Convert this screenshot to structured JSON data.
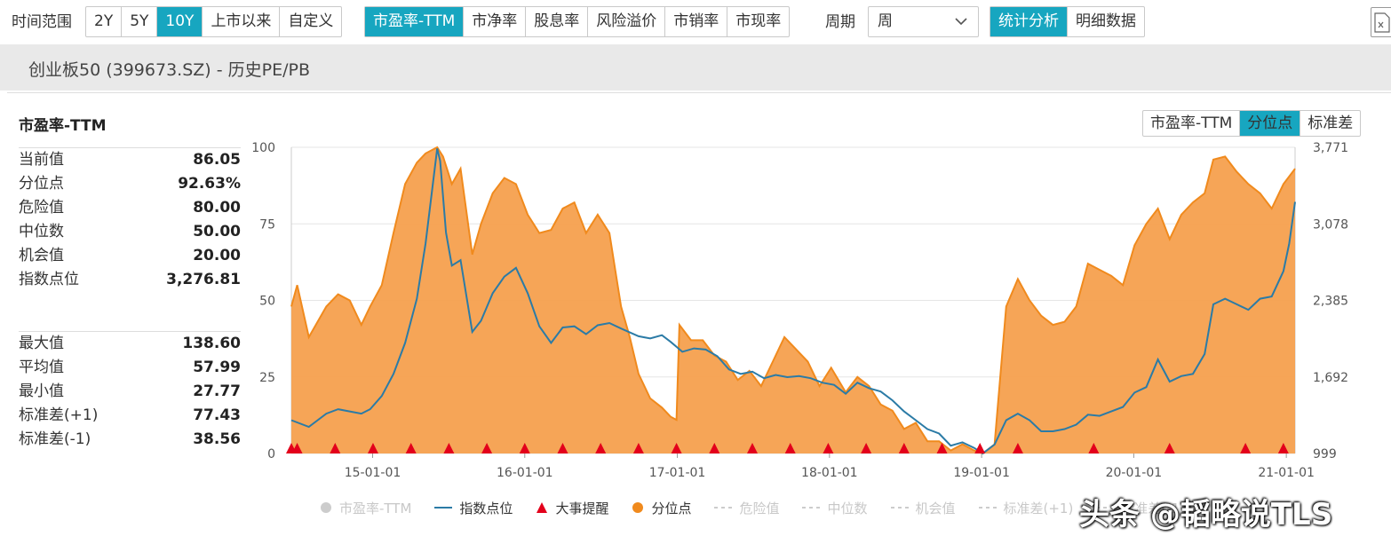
{
  "toolbar": {
    "time_range_label": "时间范围",
    "range_buttons": [
      "2Y",
      "5Y",
      "10Y",
      "上市以来",
      "自定义"
    ],
    "active_range": "10Y",
    "metric_buttons": [
      "市盈率-TTM",
      "市净率",
      "股息率",
      "风险溢价",
      "市销率",
      "市现率"
    ],
    "active_metric": "市盈率-TTM",
    "period_label": "周期",
    "period_value": "周",
    "view_buttons": [
      "统计分析",
      "明细数据"
    ],
    "active_view": "统计分析"
  },
  "subtitle": "创业板50 (399673.SZ) - 历史PE/PB",
  "panel": {
    "title": "市盈率-TTM",
    "stats_primary": [
      {
        "k": "当前值",
        "v": "86.05"
      },
      {
        "k": "分位点",
        "v": "92.63%"
      },
      {
        "k": "危险值",
        "v": "80.00"
      },
      {
        "k": "中位数",
        "v": "50.00"
      },
      {
        "k": "机会值",
        "v": "20.00"
      },
      {
        "k": "指数点位",
        "v": "3,276.81"
      }
    ],
    "stats_secondary": [
      {
        "k": "最大值",
        "v": "138.60"
      },
      {
        "k": "平均值",
        "v": "57.99"
      },
      {
        "k": "最小值",
        "v": "27.77"
      },
      {
        "k": "标准差(+1)",
        "v": "77.43"
      },
      {
        "k": "标准差(-1)",
        "v": "38.56"
      }
    ]
  },
  "mode_buttons": [
    "市盈率-TTM",
    "分位点",
    "标准差"
  ],
  "active_mode": "分位点",
  "colors": {
    "accent": "#17a6c0",
    "percentile_fill": "#f5a04e",
    "percentile_line": "#f08a1d",
    "index_line": "#2b7ba6",
    "event_marker": "#e3001b",
    "grid": "#e6e6e6"
  },
  "legend": [
    {
      "label": "市盈率-TTM",
      "icon": "circle-icon",
      "muted": true
    },
    {
      "label": "指数点位",
      "icon": "line-icon",
      "muted": false
    },
    {
      "label": "大事提醒",
      "icon": "triangle-icon",
      "muted": false
    },
    {
      "label": "分位点",
      "icon": "circle-icon",
      "muted": false
    },
    {
      "label": "危险值",
      "icon": "dash-icon",
      "muted": true
    },
    {
      "label": "中位数",
      "icon": "dash-icon",
      "muted": true
    },
    {
      "label": "机会值",
      "icon": "dash-icon",
      "muted": true
    },
    {
      "label": "标准差(+1)",
      "icon": "dash-icon",
      "muted": true
    },
    {
      "label": "标准差(-1)",
      "icon": "dash-icon",
      "muted": true
    }
  ],
  "watermark": "头条 @韬略说TLS",
  "chart_data": {
    "type": "area",
    "x_domain": [
      "2014-06-20",
      "2021-01-22"
    ],
    "x_ticks": [
      {
        "date": "2015-01-01",
        "label": "15-01-01"
      },
      {
        "date": "2016-01-01",
        "label": "16-01-01"
      },
      {
        "date": "2017-01-01",
        "label": "17-01-01"
      },
      {
        "date": "2018-01-01",
        "label": "18-01-01"
      },
      {
        "date": "2019-01-01",
        "label": "19-01-01"
      },
      {
        "date": "2020-01-01",
        "label": "20-01-01"
      },
      {
        "date": "2021-01-01",
        "label": "21-01-01"
      }
    ],
    "y_left": {
      "label": "",
      "range": [
        0,
        100
      ],
      "ticks": [
        "0",
        "25",
        "50",
        "75",
        "100"
      ]
    },
    "y_right": {
      "label": "",
      "range": [
        999,
        3771
      ],
      "ticks": [
        "999",
        "1,692",
        "2,385",
        "3,078",
        "3,771"
      ]
    },
    "grid": true,
    "legend_position": "bottom",
    "series": [
      {
        "name": "分位点",
        "axis": "left",
        "style": "area",
        "points": [
          [
            "2014-06-20",
            48
          ],
          [
            "2014-07-04",
            55
          ],
          [
            "2014-08-01",
            38
          ],
          [
            "2014-09-12",
            48
          ],
          [
            "2014-10-10",
            52
          ],
          [
            "2014-11-07",
            50
          ],
          [
            "2014-12-05",
            42
          ],
          [
            "2014-12-26",
            48
          ],
          [
            "2015-01-23",
            55
          ],
          [
            "2015-02-20",
            72
          ],
          [
            "2015-03-20",
            88
          ],
          [
            "2015-04-17",
            95
          ],
          [
            "2015-05-08",
            98
          ],
          [
            "2015-06-05",
            100
          ],
          [
            "2015-06-19",
            97
          ],
          [
            "2015-07-10",
            88
          ],
          [
            "2015-07-31",
            93
          ],
          [
            "2015-08-28",
            65
          ],
          [
            "2015-09-18",
            75
          ],
          [
            "2015-10-16",
            85
          ],
          [
            "2015-11-13",
            90
          ],
          [
            "2015-12-11",
            88
          ],
          [
            "2016-01-08",
            78
          ],
          [
            "2016-02-05",
            72
          ],
          [
            "2016-03-04",
            73
          ],
          [
            "2016-04-01",
            80
          ],
          [
            "2016-04-29",
            82
          ],
          [
            "2016-05-27",
            72
          ],
          [
            "2016-06-24",
            78
          ],
          [
            "2016-07-22",
            72
          ],
          [
            "2016-08-05",
            60
          ],
          [
            "2016-08-19",
            48
          ],
          [
            "2016-09-09",
            38
          ],
          [
            "2016-09-30",
            26
          ],
          [
            "2016-10-28",
            18
          ],
          [
            "2016-11-25",
            15
          ],
          [
            "2016-12-16",
            12
          ],
          [
            "2016-12-30",
            11
          ],
          [
            "2017-01-06",
            42
          ],
          [
            "2017-02-03",
            37
          ],
          [
            "2017-03-03",
            37
          ],
          [
            "2017-03-31",
            32
          ],
          [
            "2017-04-28",
            30
          ],
          [
            "2017-05-26",
            24
          ],
          [
            "2017-06-23",
            27
          ],
          [
            "2017-07-21",
            22
          ],
          [
            "2017-08-18",
            30
          ],
          [
            "2017-09-15",
            38
          ],
          [
            "2017-10-13",
            34
          ],
          [
            "2017-11-10",
            30
          ],
          [
            "2017-12-08",
            22
          ],
          [
            "2018-01-05",
            28
          ],
          [
            "2018-02-09",
            20
          ],
          [
            "2018-03-09",
            25
          ],
          [
            "2018-04-06",
            22
          ],
          [
            "2018-05-04",
            16
          ],
          [
            "2018-06-01",
            14
          ],
          [
            "2018-06-29",
            8
          ],
          [
            "2018-07-27",
            10
          ],
          [
            "2018-08-24",
            4
          ],
          [
            "2018-09-21",
            4
          ],
          [
            "2018-10-19",
            1
          ],
          [
            "2018-11-16",
            3
          ],
          [
            "2018-12-14",
            1
          ],
          [
            "2019-01-04",
            0
          ],
          [
            "2019-02-01",
            3
          ],
          [
            "2019-03-01",
            48
          ],
          [
            "2019-03-29",
            57
          ],
          [
            "2019-04-26",
            50
          ],
          [
            "2019-05-24",
            45
          ],
          [
            "2019-06-21",
            42
          ],
          [
            "2019-07-19",
            43
          ],
          [
            "2019-08-16",
            48
          ],
          [
            "2019-09-13",
            62
          ],
          [
            "2019-10-11",
            60
          ],
          [
            "2019-11-08",
            58
          ],
          [
            "2019-12-06",
            55
          ],
          [
            "2020-01-03",
            68
          ],
          [
            "2020-01-31",
            75
          ],
          [
            "2020-02-28",
            80
          ],
          [
            "2020-03-27",
            70
          ],
          [
            "2020-04-24",
            78
          ],
          [
            "2020-05-22",
            82
          ],
          [
            "2020-06-19",
            85
          ],
          [
            "2020-07-10",
            96
          ],
          [
            "2020-08-07",
            97
          ],
          [
            "2020-09-04",
            92
          ],
          [
            "2020-10-02",
            88
          ],
          [
            "2020-10-30",
            85
          ],
          [
            "2020-11-27",
            80
          ],
          [
            "2020-12-25",
            88
          ],
          [
            "2021-01-22",
            93
          ]
        ]
      },
      {
        "name": "指数点位",
        "axis": "right",
        "style": "line",
        "points": [
          [
            "2014-06-20",
            1300
          ],
          [
            "2014-08-01",
            1240
          ],
          [
            "2014-09-12",
            1360
          ],
          [
            "2014-10-10",
            1400
          ],
          [
            "2014-11-07",
            1380
          ],
          [
            "2014-12-05",
            1360
          ],
          [
            "2014-12-26",
            1400
          ],
          [
            "2015-01-23",
            1520
          ],
          [
            "2015-02-20",
            1720
          ],
          [
            "2015-03-20",
            2000
          ],
          [
            "2015-04-17",
            2400
          ],
          [
            "2015-05-08",
            2900
          ],
          [
            "2015-06-05",
            3760
          ],
          [
            "2015-06-12",
            3650
          ],
          [
            "2015-06-26",
            3000
          ],
          [
            "2015-07-10",
            2700
          ],
          [
            "2015-07-31",
            2750
          ],
          [
            "2015-08-28",
            2100
          ],
          [
            "2015-09-18",
            2200
          ],
          [
            "2015-10-16",
            2450
          ],
          [
            "2015-11-13",
            2600
          ],
          [
            "2015-12-11",
            2680
          ],
          [
            "2016-01-08",
            2450
          ],
          [
            "2016-02-05",
            2150
          ],
          [
            "2016-03-04",
            2000
          ],
          [
            "2016-04-01",
            2140
          ],
          [
            "2016-04-29",
            2150
          ],
          [
            "2016-05-27",
            2080
          ],
          [
            "2016-06-24",
            2160
          ],
          [
            "2016-07-22",
            2180
          ],
          [
            "2016-08-19",
            2130
          ],
          [
            "2016-09-30",
            2060
          ],
          [
            "2016-10-28",
            2040
          ],
          [
            "2016-11-25",
            2070
          ],
          [
            "2016-12-16",
            2010
          ],
          [
            "2017-01-13",
            1920
          ],
          [
            "2017-02-10",
            1950
          ],
          [
            "2017-03-10",
            1940
          ],
          [
            "2017-04-07",
            1880
          ],
          [
            "2017-05-05",
            1760
          ],
          [
            "2017-06-02",
            1720
          ],
          [
            "2017-06-30",
            1740
          ],
          [
            "2017-07-28",
            1680
          ],
          [
            "2017-08-25",
            1710
          ],
          [
            "2017-09-22",
            1690
          ],
          [
            "2017-10-20",
            1700
          ],
          [
            "2017-11-17",
            1680
          ],
          [
            "2017-12-15",
            1640
          ],
          [
            "2018-01-12",
            1620
          ],
          [
            "2018-02-09",
            1540
          ],
          [
            "2018-03-09",
            1640
          ],
          [
            "2018-04-06",
            1590
          ],
          [
            "2018-05-04",
            1560
          ],
          [
            "2018-06-01",
            1480
          ],
          [
            "2018-06-29",
            1380
          ],
          [
            "2018-07-27",
            1300
          ],
          [
            "2018-08-24",
            1220
          ],
          [
            "2018-09-21",
            1180
          ],
          [
            "2018-10-19",
            1070
          ],
          [
            "2018-11-16",
            1100
          ],
          [
            "2018-12-14",
            1050
          ],
          [
            "2019-01-04",
            1000
          ],
          [
            "2019-02-01",
            1080
          ],
          [
            "2019-03-01",
            1300
          ],
          [
            "2019-03-29",
            1360
          ],
          [
            "2019-04-26",
            1300
          ],
          [
            "2019-05-24",
            1200
          ],
          [
            "2019-06-21",
            1200
          ],
          [
            "2019-07-19",
            1220
          ],
          [
            "2019-08-16",
            1260
          ],
          [
            "2019-09-13",
            1350
          ],
          [
            "2019-10-11",
            1340
          ],
          [
            "2019-11-08",
            1380
          ],
          [
            "2019-12-06",
            1420
          ],
          [
            "2020-01-03",
            1550
          ],
          [
            "2020-01-31",
            1600
          ],
          [
            "2020-02-28",
            1850
          ],
          [
            "2020-03-27",
            1650
          ],
          [
            "2020-04-24",
            1700
          ],
          [
            "2020-05-22",
            1720
          ],
          [
            "2020-06-19",
            1900
          ],
          [
            "2020-07-10",
            2350
          ],
          [
            "2020-08-07",
            2400
          ],
          [
            "2020-09-04",
            2350
          ],
          [
            "2020-10-02",
            2300
          ],
          [
            "2020-10-30",
            2400
          ],
          [
            "2020-11-27",
            2420
          ],
          [
            "2020-12-25",
            2650
          ],
          [
            "2021-01-08",
            2900
          ],
          [
            "2021-01-22",
            3276.81
          ]
        ]
      },
      {
        "name": "大事提醒",
        "axis": "none",
        "style": "marker",
        "dates": [
          "2014-06-20",
          "2014-07-04",
          "2014-10-03",
          "2015-01-02",
          "2015-04-03",
          "2015-07-03",
          "2015-10-02",
          "2016-01-01",
          "2016-04-01",
          "2016-07-01",
          "2016-09-30",
          "2016-12-30",
          "2017-03-31",
          "2017-06-30",
          "2017-09-29",
          "2017-12-29",
          "2018-03-30",
          "2018-06-29",
          "2018-09-28",
          "2018-12-28",
          "2019-03-29",
          "2019-09-27",
          "2020-03-27",
          "2020-09-25",
          "2020-12-25"
        ]
      }
    ]
  }
}
